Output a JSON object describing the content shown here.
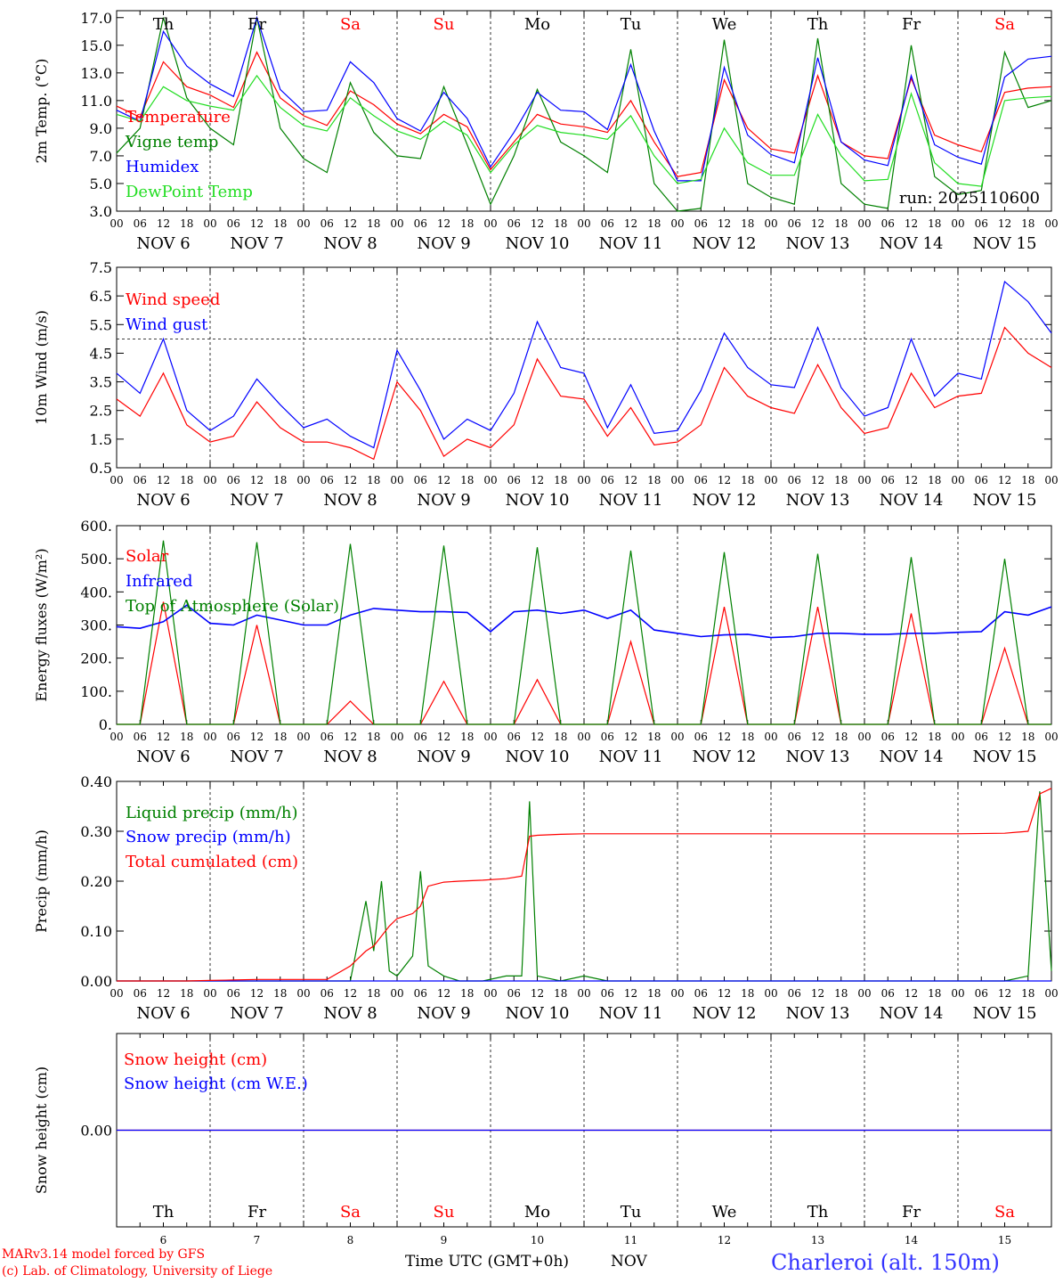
{
  "meteogram": {
    "run_label": "run: 2025110600",
    "days": [
      {
        "abbr": "Th",
        "num": "6"
      },
      {
        "abbr": "Fr",
        "num": "7"
      },
      {
        "abbr": "Sa",
        "num": "8"
      },
      {
        "abbr": "Su",
        "num": "9"
      },
      {
        "abbr": "Mo",
        "num": "10"
      },
      {
        "abbr": "Tu",
        "num": "11"
      },
      {
        "abbr": "We",
        "num": "12"
      },
      {
        "abbr": "Th",
        "num": "13"
      },
      {
        "abbr": "Fr",
        "num": "14"
      },
      {
        "abbr": "Sa",
        "num": "15"
      }
    ],
    "month": "NOV",
    "hour_ticks": [
      "00",
      "06",
      "12",
      "18"
    ],
    "final_tick": "00",
    "x_axis_label": "Time UTC (GMT+0h)",
    "credit_line1": "MARv3.14 model forced by GFS",
    "credit_line2": "(c) Lab. of Climatology, University of Liege",
    "station": "Charleroi (alt. 150m)",
    "colors": {
      "red": "#ff0000",
      "green": "#008000",
      "blue": "#0000ff",
      "lightgreen": "#22dd22",
      "weekend": "#ff0000",
      "black": "#000000"
    }
  },
  "chart_data": [
    {
      "type": "line",
      "ylabel": "2m Temp. (°C)",
      "ylim": [
        3,
        17.5
      ],
      "ytick_labels": [
        "3.0",
        "5.0",
        "7.0",
        "9.0",
        "11.0",
        "13.0",
        "15.0",
        "17.0"
      ],
      "ytick_values": [
        3,
        5,
        7,
        9,
        11,
        13,
        15,
        17
      ],
      "legend": [
        "Temperature",
        "Vigne temp",
        "Humidex",
        "DewPoint Temp"
      ],
      "x_hours": [
        0,
        6,
        12,
        18,
        24,
        30,
        36,
        42,
        48,
        54,
        60,
        66,
        72,
        78,
        84,
        90,
        96,
        102,
        108,
        114,
        120,
        126,
        132,
        138,
        144,
        150,
        156,
        162,
        168,
        174,
        180,
        186,
        192,
        198,
        204,
        210,
        216,
        222,
        228,
        234,
        240
      ],
      "series": [
        {
          "name": "Temperature",
          "color": "red",
          "values": [
            10.6,
            9.8,
            13.8,
            12,
            11.4,
            10.5,
            14.5,
            11.2,
            9.9,
            9.2,
            11.7,
            10.7,
            9.3,
            8.6,
            10,
            9.1,
            6,
            8,
            10,
            9.3,
            9.1,
            8.7,
            11,
            8,
            5.5,
            5.8,
            12.5,
            9,
            7.5,
            7.2,
            12.8,
            8,
            7,
            6.8,
            12.6,
            8.5,
            7.8,
            7.3,
            11.6,
            11.9,
            12
          ]
        },
        {
          "name": "Vigne temp",
          "color": "green",
          "values": [
            7.2,
            9,
            17,
            11.2,
            9,
            7.8,
            17,
            9,
            6.8,
            5.8,
            12.3,
            8.7,
            7,
            6.8,
            12,
            7.8,
            3.5,
            7,
            11.8,
            8,
            7,
            5.8,
            14.7,
            5,
            3,
            3.2,
            15.4,
            5,
            4,
            3.5,
            15.5,
            5,
            3.5,
            3.2,
            15,
            5.5,
            4.2,
            4.5,
            14.5,
            10.5,
            11
          ]
        },
        {
          "name": "Humidex",
          "color": "blue",
          "values": [
            10.3,
            9.5,
            16,
            13.5,
            12.2,
            11.3,
            17,
            11.8,
            10.2,
            10.3,
            13.8,
            12.3,
            9.7,
            8.8,
            11.6,
            9.7,
            6.2,
            8.7,
            11.6,
            10.3,
            10.2,
            8.9,
            13.6,
            8.8,
            5.2,
            5.2,
            13.4,
            8.5,
            7.1,
            6.5,
            14.1,
            8,
            6.7,
            6.3,
            12.8,
            7.8,
            6.9,
            6.4,
            12.7,
            14,
            14.2
          ]
        },
        {
          "name": "DewPoint Temp",
          "color": "lightgreen",
          "values": [
            10,
            9.5,
            12,
            11,
            10.6,
            10.3,
            12.8,
            10.5,
            9.2,
            8.8,
            11.2,
            9.9,
            8.8,
            8.2,
            9.5,
            8.5,
            5.8,
            7.8,
            9.2,
            8.7,
            8.5,
            8.2,
            9.9,
            7,
            5,
            5.3,
            9,
            6.5,
            5.6,
            5.6,
            10,
            7,
            5.2,
            5.3,
            11.5,
            6.5,
            5,
            4.8,
            11,
            11.2,
            11.3
          ]
        }
      ]
    },
    {
      "type": "line",
      "ylabel": "10m Wind (m/s)",
      "ylim": [
        0.5,
        7.5
      ],
      "ytick_labels": [
        "0.5",
        "1.5",
        "2.5",
        "3.5",
        "4.5",
        "5.5",
        "6.5",
        "7.5"
      ],
      "ytick_values": [
        0.5,
        1.5,
        2.5,
        3.5,
        4.5,
        5.5,
        6.5,
        7.5
      ],
      "reference_line": 5,
      "legend": [
        "Wind speed",
        "Wind gust"
      ],
      "x_hours": [
        0,
        6,
        12,
        18,
        24,
        30,
        36,
        42,
        48,
        54,
        60,
        66,
        72,
        78,
        84,
        90,
        96,
        102,
        108,
        114,
        120,
        126,
        132,
        138,
        144,
        150,
        156,
        162,
        168,
        174,
        180,
        186,
        192,
        198,
        204,
        210,
        216,
        222,
        228,
        234,
        240
      ],
      "series": [
        {
          "name": "Wind speed",
          "color": "red",
          "values": [
            2.9,
            2.3,
            3.8,
            2,
            1.4,
            1.6,
            2.8,
            1.9,
            1.4,
            1.4,
            1.2,
            0.8,
            3.5,
            2.5,
            0.9,
            1.5,
            1.2,
            2,
            4.3,
            3,
            2.9,
            1.6,
            2.6,
            1.3,
            1.4,
            2,
            4,
            3,
            2.6,
            2.4,
            4.1,
            2.6,
            1.7,
            1.9,
            3.8,
            2.6,
            3,
            3.1,
            5.4,
            4.5,
            4
          ]
        },
        {
          "name": "Wind gust",
          "color": "blue",
          "values": [
            3.8,
            3.1,
            5,
            2.5,
            1.8,
            2.3,
            3.6,
            2.7,
            1.9,
            2.2,
            1.6,
            1.2,
            4.6,
            3.2,
            1.5,
            2.2,
            1.8,
            3.1,
            5.6,
            4,
            3.8,
            1.9,
            3.4,
            1.7,
            1.8,
            3.2,
            5.2,
            4,
            3.4,
            3.3,
            5.4,
            3.3,
            2.3,
            2.6,
            5,
            3,
            3.8,
            3.6,
            7,
            6.3,
            5.2
          ]
        }
      ]
    },
    {
      "type": "line",
      "ylabel": "Energy fluxes (W/m²)",
      "ylim": [
        0,
        600
      ],
      "ytick_labels": [
        "0.",
        "100.",
        "200.",
        "300.",
        "400.",
        "500.",
        "600."
      ],
      "ytick_values": [
        0,
        100,
        200,
        300,
        400,
        500,
        600
      ],
      "legend": [
        "Solar",
        "Infrared",
        "Top of Atmosphere (Solar)"
      ],
      "x_hours": [
        0,
        6,
        12,
        18,
        24,
        30,
        36,
        42,
        48,
        54,
        60,
        66,
        72,
        78,
        84,
        90,
        96,
        102,
        108,
        114,
        120,
        126,
        132,
        138,
        144,
        150,
        156,
        162,
        168,
        174,
        180,
        186,
        192,
        198,
        204,
        210,
        216,
        222,
        228,
        234,
        240
      ],
      "series": [
        {
          "name": "Solar",
          "color": "red",
          "values": [
            0,
            0,
            370,
            0,
            0,
            0,
            300,
            0,
            0,
            0,
            70,
            0,
            0,
            0,
            130,
            0,
            0,
            0,
            135,
            0,
            0,
            0,
            250,
            0,
            0,
            0,
            355,
            0,
            0,
            0,
            355,
            0,
            0,
            0,
            335,
            0,
            0,
            0,
            230,
            0,
            0
          ]
        },
        {
          "name": "Infrared",
          "color": "blue",
          "values": [
            295,
            290,
            310,
            360,
            305,
            300,
            330,
            315,
            300,
            300,
            330,
            350,
            345,
            340,
            340,
            338,
            280,
            340,
            345,
            335,
            345,
            320,
            345,
            285,
            275,
            265,
            270,
            272,
            262,
            265,
            275,
            275,
            272,
            272,
            275,
            275,
            278,
            280,
            340,
            330,
            355
          ]
        },
        {
          "name": "Top of Atmosphere (Solar)",
          "color": "green",
          "values": [
            0,
            0,
            555,
            0,
            0,
            0,
            550,
            0,
            0,
            0,
            545,
            0,
            0,
            0,
            540,
            0,
            0,
            0,
            535,
            0,
            0,
            0,
            525,
            0,
            0,
            0,
            520,
            0,
            0,
            0,
            515,
            0,
            0,
            0,
            505,
            0,
            0,
            0,
            500,
            0,
            0
          ]
        }
      ]
    },
    {
      "type": "line",
      "ylabel": "Precip (mm/h)",
      "ylim": [
        0,
        0.4
      ],
      "ytick_labels": [
        "0.00",
        "0.10",
        "0.20",
        "0.30",
        "0.40"
      ],
      "ytick_values": [
        0,
        0.1,
        0.2,
        0.3,
        0.4
      ],
      "legend": [
        "Liquid precip (mm/h)",
        "Snow precip (mm/h)",
        "Total cumulated (cm)"
      ],
      "x_hours": [
        0,
        6,
        12,
        18,
        24,
        30,
        36,
        42,
        48,
        54,
        60,
        64,
        66,
        68,
        70,
        72,
        76,
        78,
        80,
        84,
        88,
        94,
        100,
        104,
        106,
        108,
        114,
        120,
        126,
        132,
        138,
        144,
        168,
        192,
        216,
        228,
        234,
        237,
        240
      ],
      "series": [
        {
          "name": "Liquid precip (mm/h)",
          "color": "green",
          "values": [
            0,
            0,
            0,
            0,
            0,
            0,
            0,
            0,
            0,
            0,
            0,
            0.16,
            0.06,
            0.2,
            0.02,
            0.01,
            0.05,
            0.22,
            0.03,
            0.01,
            0,
            0,
            0.01,
            0.01,
            0.36,
            0.01,
            0,
            0.01,
            0,
            0,
            0,
            0,
            0,
            0,
            0,
            0,
            0.01,
            0.38,
            0.02
          ]
        },
        {
          "name": "Snow precip (mm/h)",
          "color": "blue",
          "values": [
            0,
            0,
            0,
            0,
            0,
            0,
            0,
            0,
            0,
            0,
            0,
            0,
            0,
            0,
            0,
            0,
            0,
            0,
            0,
            0,
            0,
            0,
            0,
            0,
            0,
            0,
            0,
            0,
            0,
            0,
            0,
            0,
            0,
            0,
            0,
            0,
            0,
            0,
            0
          ]
        },
        {
          "name": "Total cumulated (cm)",
          "color": "red",
          "values": [
            0,
            0,
            0,
            0,
            0.001,
            0.002,
            0.003,
            0.003,
            0.003,
            0.003,
            0.03,
            0.06,
            0.07,
            0.09,
            0.11,
            0.125,
            0.135,
            0.15,
            0.19,
            0.198,
            0.2,
            0.202,
            0.205,
            0.21,
            0.29,
            0.292,
            0.294,
            0.295,
            0.295,
            0.295,
            0.295,
            0.295,
            0.295,
            0.295,
            0.295,
            0.296,
            0.3,
            0.375,
            0.386
          ]
        }
      ]
    },
    {
      "type": "line",
      "ylabel": "Snow height (cm)",
      "ylim": [
        -1,
        1
      ],
      "ytick_labels": [
        "0.00"
      ],
      "ytick_values": [
        0
      ],
      "legend": [
        "Snow height (cm)",
        "Snow height (cm W.E.)"
      ],
      "x_hours": [
        0,
        240
      ],
      "series": [
        {
          "name": "Snow height (cm)",
          "color": "red",
          "values": [
            0,
            0
          ]
        },
        {
          "name": "Snow height (cm W.E.)",
          "color": "blue",
          "values": [
            0,
            0
          ]
        }
      ]
    }
  ]
}
